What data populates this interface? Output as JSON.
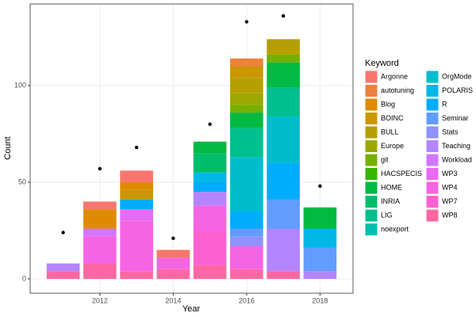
{
  "chart_data": {
    "type": "bar",
    "stacked": true,
    "x_label": "Year",
    "y_label": "Count",
    "legend_title": "Keyword",
    "x": [
      2011,
      2012,
      2013,
      2014,
      2015,
      2016,
      2017,
      2018
    ],
    "xlim": [
      2010.1,
      2018.9
    ],
    "xticks": [
      2012,
      2014,
      2016,
      2018
    ],
    "ylim": [
      -7.4,
      142.2
    ],
    "yticks": [
      0,
      50,
      100
    ],
    "grid": true,
    "series": [
      {
        "name": "Argonne",
        "color": "#F8766D",
        "values": [
          null,
          4,
          6,
          4,
          null,
          null,
          null,
          null
        ]
      },
      {
        "name": "autotuning",
        "color": "#EC823C",
        "values": [
          null,
          null,
          null,
          null,
          null,
          4,
          null,
          null
        ]
      },
      {
        "name": "Blog",
        "color": "#DF8B00",
        "values": [
          null,
          10,
          4,
          null,
          null,
          null,
          null,
          null
        ]
      },
      {
        "name": "BOINC",
        "color": "#CB9600",
        "values": [
          null,
          null,
          5,
          null,
          null,
          6,
          null,
          null
        ]
      },
      {
        "name": "BULL",
        "color": "#B69F00",
        "values": [
          null,
          null,
          null,
          null,
          null,
          8,
          8,
          null
        ]
      },
      {
        "name": "Europe",
        "color": "#9AA800",
        "values": [
          null,
          null,
          null,
          null,
          null,
          6,
          null,
          null
        ]
      },
      {
        "name": "git",
        "color": "#74B000",
        "values": [
          null,
          null,
          null,
          null,
          null,
          4,
          4,
          null
        ]
      },
      {
        "name": "HACSPECIS",
        "color": "#37B600",
        "values": [
          null,
          null,
          null,
          null,
          null,
          null,
          null,
          null
        ]
      },
      {
        "name": "HOME",
        "color": "#00BA42",
        "values": [
          null,
          null,
          null,
          null,
          6,
          8,
          13,
          11
        ]
      },
      {
        "name": "INRIA",
        "color": "#00BD6C",
        "values": [
          null,
          null,
          null,
          null,
          10,
          null,
          null,
          null
        ]
      },
      {
        "name": "LIG",
        "color": "#00BF8E",
        "values": [
          null,
          null,
          null,
          null,
          null,
          15,
          15,
          null
        ]
      },
      {
        "name": "noexport",
        "color": "#00C0AD",
        "values": [
          null,
          null,
          null,
          null,
          null,
          null,
          null,
          null
        ]
      },
      {
        "name": "OrgMode",
        "color": "#00BDCC",
        "values": [
          null,
          null,
          null,
          null,
          null,
          28,
          24,
          null
        ]
      },
      {
        "name": "POLARIS",
        "color": "#00B7E5",
        "values": [
          null,
          null,
          null,
          null,
          5,
          null,
          null,
          10
        ]
      },
      {
        "name": "R",
        "color": "#00ACFC",
        "values": [
          null,
          null,
          5,
          null,
          5,
          9,
          19,
          null
        ]
      },
      {
        "name": "Seminar",
        "color": "#619CFF",
        "values": [
          null,
          null,
          null,
          null,
          null,
          4,
          15,
          12
        ]
      },
      {
        "name": "Stats",
        "color": "#8F91FF",
        "values": [
          null,
          null,
          null,
          null,
          null,
          5,
          null,
          null
        ]
      },
      {
        "name": "Teaching",
        "color": "#B385FF",
        "values": [
          4,
          null,
          null,
          null,
          7,
          null,
          22,
          4
        ]
      },
      {
        "name": "Workload",
        "color": "#D277FF",
        "values": [
          null,
          4,
          null,
          null,
          null,
          null,
          null,
          null
        ]
      },
      {
        "name": "WP3",
        "color": "#E76BF3",
        "values": [
          null,
          null,
          6,
          null,
          null,
          null,
          null,
          null
        ]
      },
      {
        "name": "WP4",
        "color": "#F564E3",
        "values": [
          null,
          14,
          26,
          6,
          13,
          12,
          null,
          null
        ]
      },
      {
        "name": "WP7",
        "color": "#FD61D1",
        "values": [
          null,
          null,
          null,
          null,
          18,
          null,
          null,
          null
        ]
      },
      {
        "name": "WP8",
        "color": "#FF67A4",
        "values": [
          4,
          8,
          4,
          5,
          7,
          5,
          4,
          null
        ]
      }
    ],
    "points": {
      "color": "#000000",
      "values": [
        24,
        57,
        68,
        21,
        80,
        133,
        136,
        48
      ]
    }
  }
}
